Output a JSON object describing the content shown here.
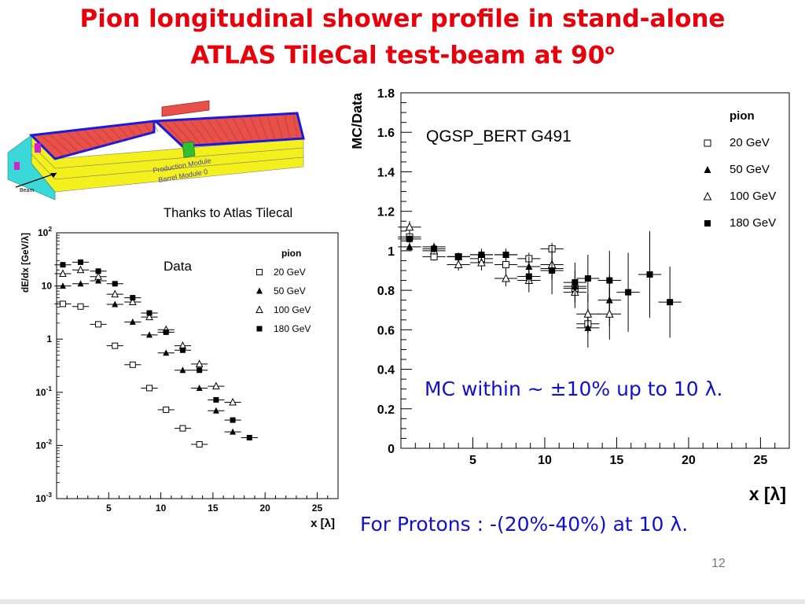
{
  "slide": {
    "title_line1": "Pion longitudinal shower profile in stand-alone",
    "title_line2": "ATLAS TileCal test-beam at 90",
    "title_sup": "o",
    "thanks": "Thanks to Atlas Tilecal",
    "note_mc": "MC within ~ ±10% up to 10 λ.",
    "note_protons": "For Protons : -(20%-40%) at 10 λ.",
    "slide_number": "12"
  },
  "detector": {
    "label_production": "Production Module",
    "label_barrel": "Barrel Module 0",
    "label_beam": "Beam",
    "colors": {
      "top": "#e8504a",
      "face": "#f4f01e",
      "end": "#3ad8d8",
      "edge": "#1a1adf",
      "magenta": "#d020d0"
    }
  },
  "chart_data": [
    {
      "type": "scatter",
      "title": "",
      "annotation": "Data",
      "xlabel": "x [λ]",
      "ylabel": "dE/dx [GeV/λ]",
      "yscale": "log",
      "xlim": [
        0,
        27
      ],
      "ylim": [
        0.001,
        100
      ],
      "x_ticks": [
        "5",
        "10",
        "15",
        "20",
        "25"
      ],
      "y_ticks": [
        "10^2",
        "10",
        "1",
        "10^-1",
        "10^-2",
        "10^-3"
      ],
      "legend": {
        "title": "pion",
        "placement": "top-right",
        "entries": [
          "20 GeV",
          "50 GeV",
          "100 GeV",
          "180 GeV"
        ]
      },
      "series": [
        {
          "name": "20 GeV",
          "marker": "open-square",
          "x": [
            0.6,
            2.3,
            4.0,
            5.6,
            7.3,
            8.9,
            10.5,
            12.1,
            13.7
          ],
          "y": [
            4.6,
            4.1,
            1.9,
            0.75,
            0.33,
            0.12,
            0.047,
            0.021,
            0.0105
          ]
        },
        {
          "name": "50 GeV",
          "marker": "filled-triangle",
          "x": [
            0.6,
            2.3,
            4.0,
            5.6,
            7.3,
            8.9,
            10.5,
            12.1,
            13.7,
            15.3,
            16.9
          ],
          "y": [
            10,
            11,
            12.5,
            4.5,
            2.1,
            1.2,
            0.55,
            0.26,
            0.12,
            0.045,
            0.018
          ]
        },
        {
          "name": "100 GeV",
          "marker": "open-triangle",
          "x": [
            0.6,
            2.3,
            4.0,
            5.6,
            7.3,
            8.9,
            10.5,
            12.1,
            13.7,
            15.3,
            16.9
          ],
          "y": [
            17,
            20,
            15,
            7,
            5,
            2.6,
            1.5,
            0.75,
            0.34,
            0.13,
            0.065
          ]
        },
        {
          "name": "180 GeV",
          "marker": "filled-square",
          "x": [
            0.6,
            2.3,
            4.0,
            5.6,
            7.3,
            8.9,
            10.5,
            12.1,
            13.7,
            15.3,
            16.9,
            18.5
          ],
          "y": [
            25,
            28,
            19,
            11,
            6,
            3.1,
            1.35,
            0.62,
            0.26,
            0.072,
            0.03,
            0.014
          ]
        }
      ]
    },
    {
      "type": "scatter",
      "title": "",
      "annotation": "QGSP_BERT  G491",
      "xlabel": "x [λ]",
      "ylabel": "MC/Data",
      "xlim": [
        0,
        27
      ],
      "ylim": [
        0,
        1.8
      ],
      "x_ticks": [
        "5",
        "10",
        "15",
        "20",
        "25"
      ],
      "y_ticks": [
        "0",
        "0.2",
        "0.4",
        "0.6",
        "0.8",
        "1",
        "1.2",
        "1.4",
        "1.6",
        "1.8"
      ],
      "legend": {
        "title": "pion",
        "placement": "top-right",
        "entries": [
          "20 GeV",
          "50 GeV",
          "100 GeV",
          "180 GeV"
        ]
      },
      "series": [
        {
          "name": "20 GeV",
          "marker": "open-square",
          "x": [
            0.6,
            2.3,
            4.0,
            5.6,
            7.3,
            8.9,
            10.5,
            12.1,
            13.0
          ],
          "y": [
            1.07,
            0.97,
            0.97,
            0.96,
            0.93,
            0.96,
            1.01,
            0.81,
            0.63
          ],
          "err": [
            0.03,
            0.02,
            0.02,
            0.02,
            0.03,
            0.03,
            0.03,
            0.03,
            0.04
          ]
        },
        {
          "name": "50 GeV",
          "marker": "filled-triangle",
          "x": [
            0.6,
            2.3,
            4.0,
            5.6,
            7.3,
            8.9,
            10.5,
            12.1,
            13.0,
            14.5
          ],
          "y": [
            1.02,
            1.02,
            0.97,
            0.98,
            0.98,
            0.92,
            0.91,
            0.82,
            0.61,
            0.75
          ],
          "err": [
            0.02,
            0.02,
            0.02,
            0.03,
            0.03,
            0.05,
            0.06,
            0.08,
            0.1,
            0.13
          ]
        },
        {
          "name": "100 GeV",
          "marker": "open-triangle",
          "x": [
            0.6,
            2.3,
            4.0,
            5.6,
            7.3,
            8.9,
            10.5,
            12.1,
            13.0,
            14.5
          ],
          "y": [
            1.12,
            1.0,
            0.93,
            0.94,
            0.86,
            0.85,
            0.93,
            0.79,
            0.68,
            0.68
          ],
          "err": [
            0.03,
            0.02,
            0.03,
            0.04,
            0.04,
            0.06,
            0.07,
            0.08,
            0.1,
            0.13
          ]
        },
        {
          "name": "180 GeV",
          "marker": "filled-square",
          "x": [
            0.6,
            2.3,
            4.0,
            5.6,
            7.3,
            8.9,
            10.5,
            12.1,
            13.0,
            14.5,
            15.8,
            17.3,
            18.7
          ],
          "y": [
            1.06,
            1.01,
            0.97,
            0.98,
            0.98,
            0.87,
            0.9,
            0.84,
            0.86,
            0.85,
            0.79,
            0.88,
            0.74
          ],
          "err": [
            0.02,
            0.02,
            0.02,
            0.03,
            0.03,
            0.04,
            0.12,
            0.1,
            0.12,
            0.15,
            0.2,
            0.22,
            0.18
          ]
        }
      ]
    }
  ]
}
